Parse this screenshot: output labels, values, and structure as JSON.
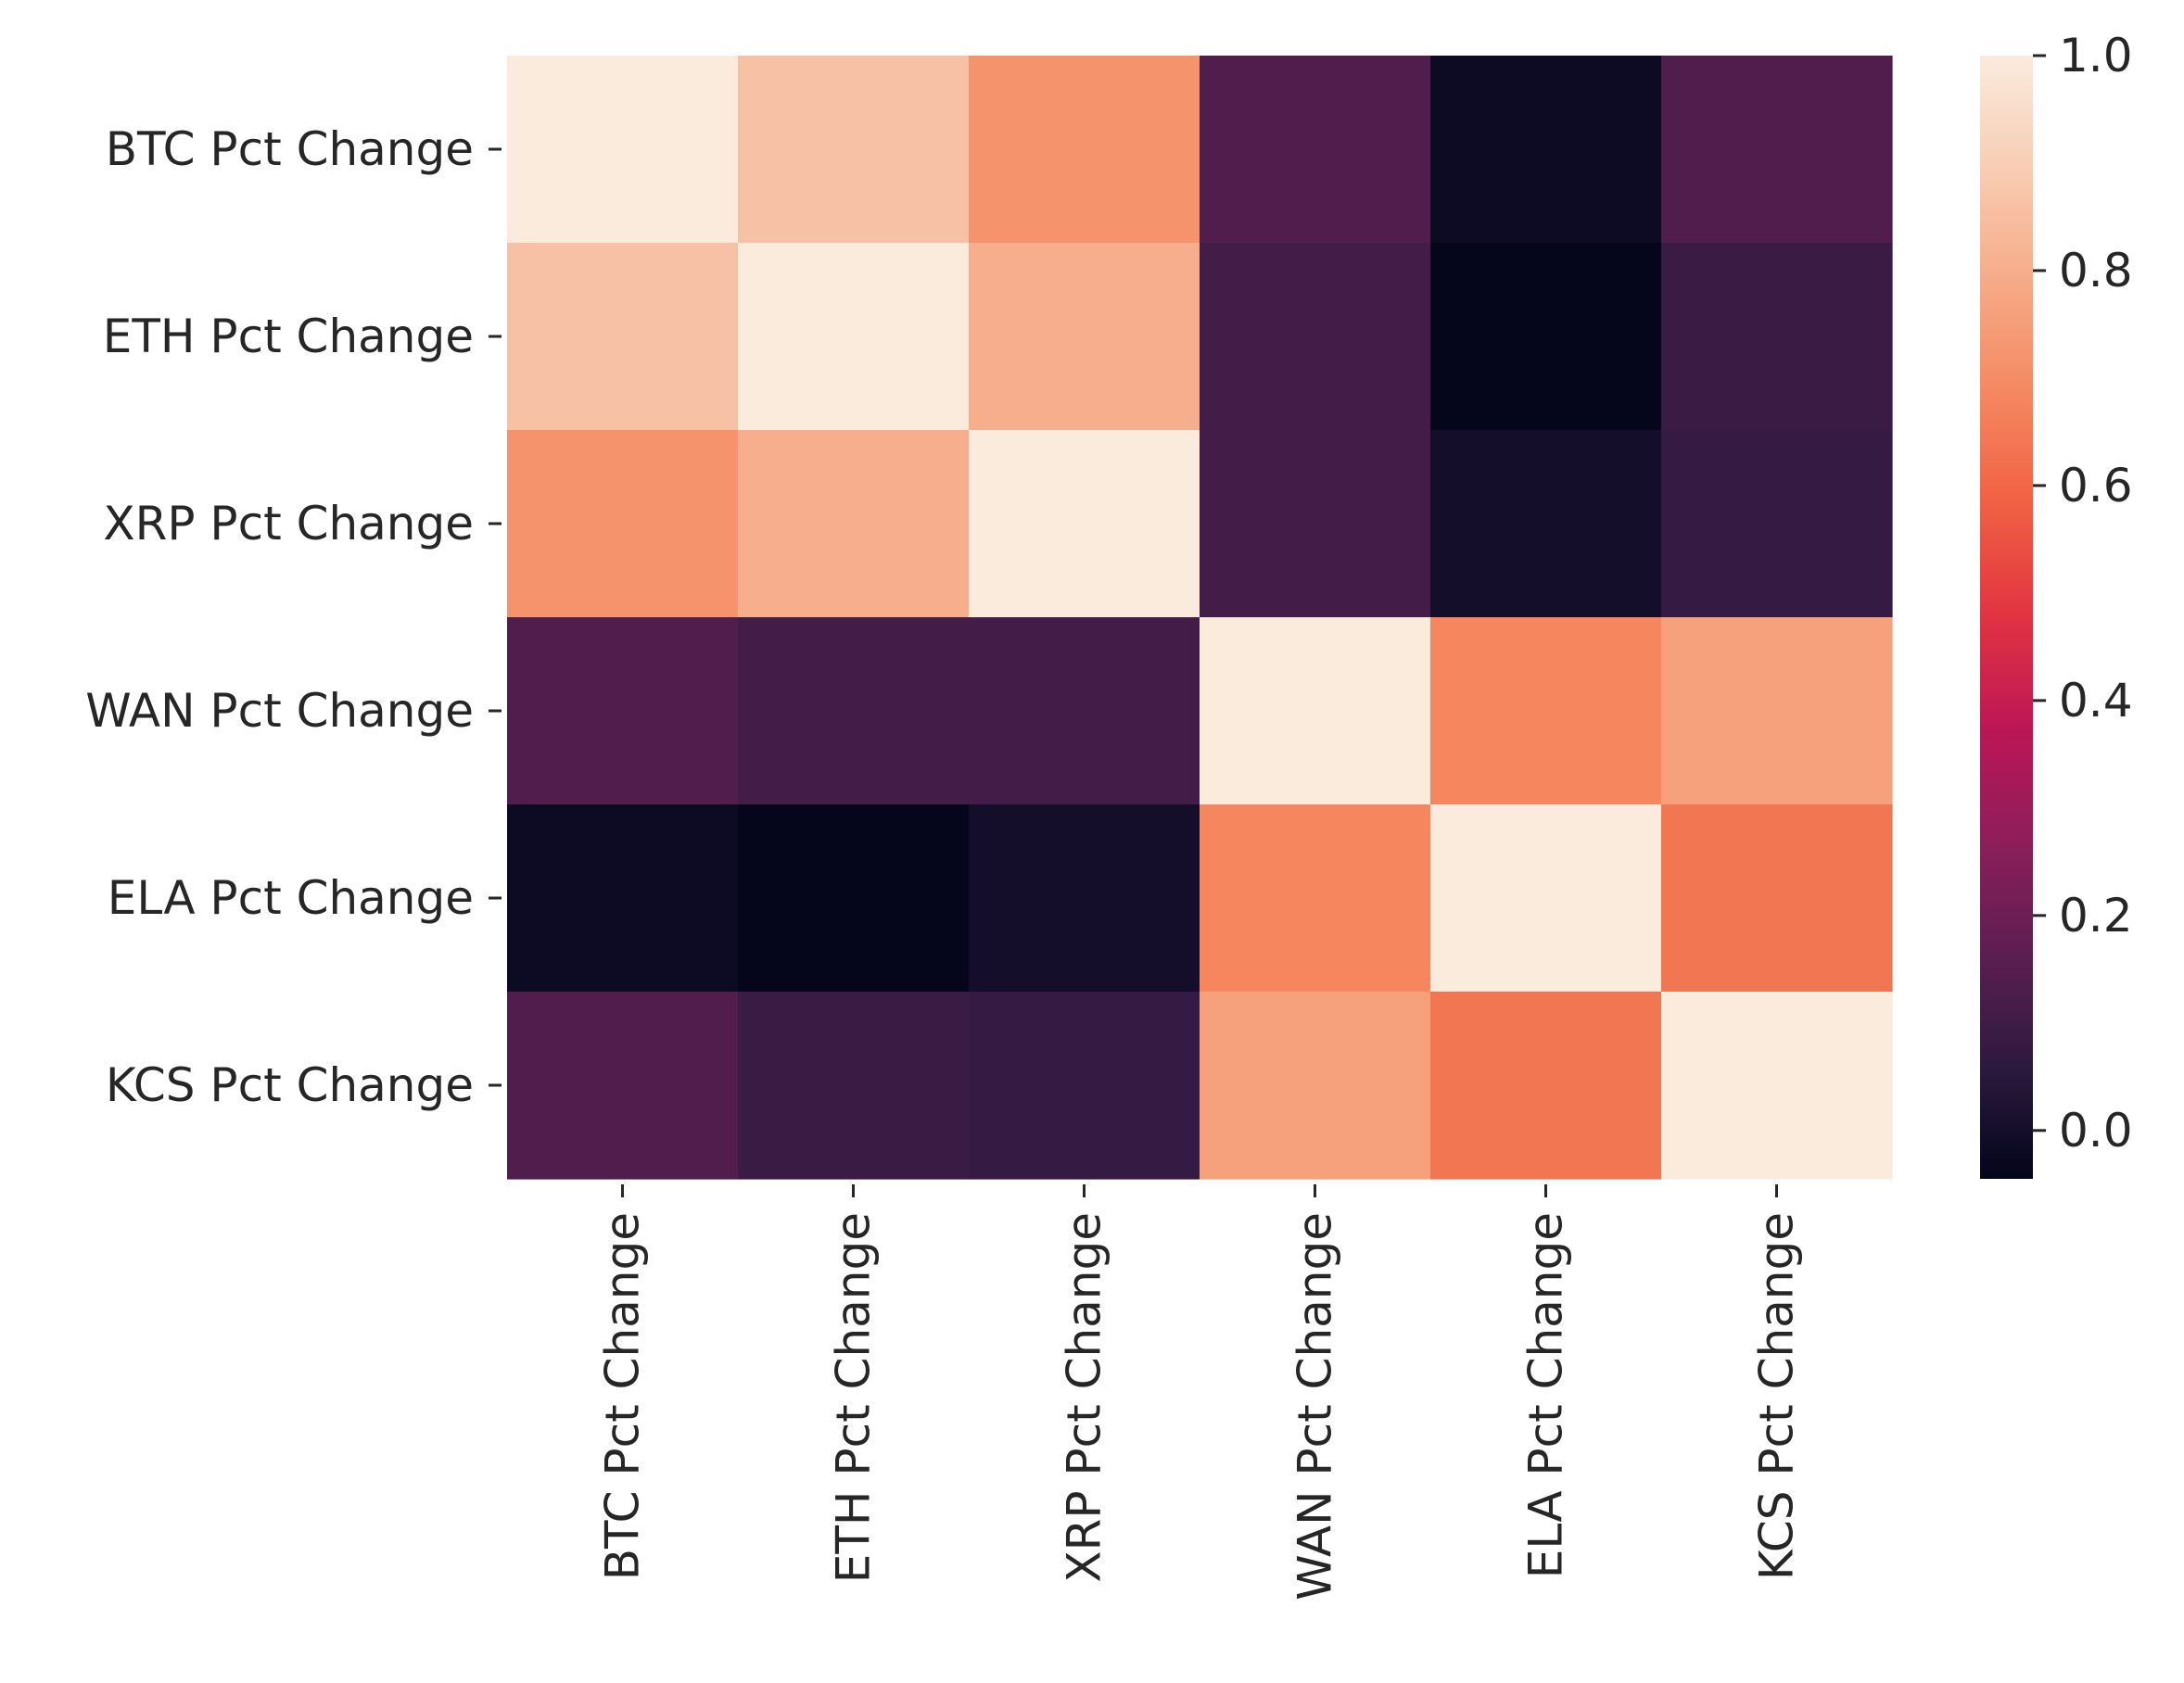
{
  "chart_data": {
    "type": "heatmap",
    "title": "",
    "xlabel": "",
    "ylabel": "",
    "x_categories": [
      "BTC Pct Change",
      "ETH Pct Change",
      "XRP Pct Change",
      "WAN Pct Change",
      "ELA Pct Change",
      "KCS Pct Change"
    ],
    "y_categories": [
      "BTC Pct Change",
      "ETH Pct Change",
      "XRP Pct Change",
      "WAN Pct Change",
      "ELA Pct Change",
      "KCS Pct Change"
    ],
    "values": [
      [
        1.0,
        0.86,
        0.72,
        0.14,
        -0.02,
        0.14
      ],
      [
        0.86,
        1.0,
        0.8,
        0.11,
        -0.04,
        0.09
      ],
      [
        0.72,
        0.8,
        1.0,
        0.11,
        0.0,
        0.08
      ],
      [
        0.14,
        0.11,
        0.11,
        1.0,
        0.68,
        0.76
      ],
      [
        -0.02,
        -0.04,
        0.0,
        0.68,
        1.0,
        0.64
      ],
      [
        0.14,
        0.09,
        0.08,
        0.76,
        0.64,
        1.0
      ]
    ],
    "colorbar": {
      "min": -0.045,
      "max": 1.0,
      "ticks": [
        0.0,
        0.2,
        0.4,
        0.6,
        0.8,
        1.0
      ],
      "tick_labels": [
        "0.0",
        "0.2",
        "0.4",
        "0.6",
        "0.8",
        "1.0"
      ],
      "colormap": "rocket",
      "color_stops": [
        "#03051a",
        "#2c1a3f",
        "#5c1e51",
        "#8d1e5a",
        "#bc1656",
        "#e13342",
        "#f06043",
        "#f58860",
        "#f6ab88",
        "#f8cdb4",
        "#faebdd"
      ]
    },
    "grid": false,
    "legend": "colorbar-right"
  }
}
